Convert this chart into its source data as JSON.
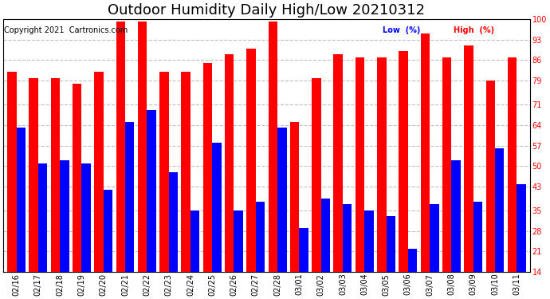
{
  "title": "Outdoor Humidity Daily High/Low 20210312",
  "copyright": "Copyright 2021  Cartronics.com",
  "categories": [
    "02/16",
    "02/17",
    "02/18",
    "02/19",
    "02/20",
    "02/21",
    "02/22",
    "02/23",
    "02/24",
    "02/25",
    "02/26",
    "02/27",
    "02/28",
    "03/01",
    "03/02",
    "03/03",
    "03/04",
    "03/05",
    "03/06",
    "03/07",
    "03/08",
    "03/09",
    "03/10",
    "03/11"
  ],
  "high_values": [
    82,
    80,
    80,
    78,
    82,
    99,
    99,
    82,
    82,
    85,
    88,
    90,
    99,
    65,
    80,
    88,
    87,
    87,
    89,
    95,
    87,
    91,
    79,
    87
  ],
  "low_values": [
    63,
    51,
    52,
    51,
    42,
    65,
    69,
    48,
    35,
    58,
    35,
    38,
    63,
    29,
    39,
    37,
    35,
    33,
    22,
    37,
    52,
    38,
    56,
    44
  ],
  "high_color": "#FF0000",
  "low_color": "#0000FF",
  "bg_color": "#FFFFFF",
  "grid_color": "#C0C0C0",
  "yticks": [
    14,
    21,
    28,
    35,
    43,
    50,
    57,
    64,
    71,
    79,
    86,
    93,
    100
  ],
  "ymin": 14,
  "ymax": 100,
  "legend_low_label": "Low  (%)",
  "legend_high_label": "High  (%)",
  "title_fontsize": 13,
  "copyright_fontsize": 7,
  "tick_fontsize": 7,
  "bar_width": 0.42
}
